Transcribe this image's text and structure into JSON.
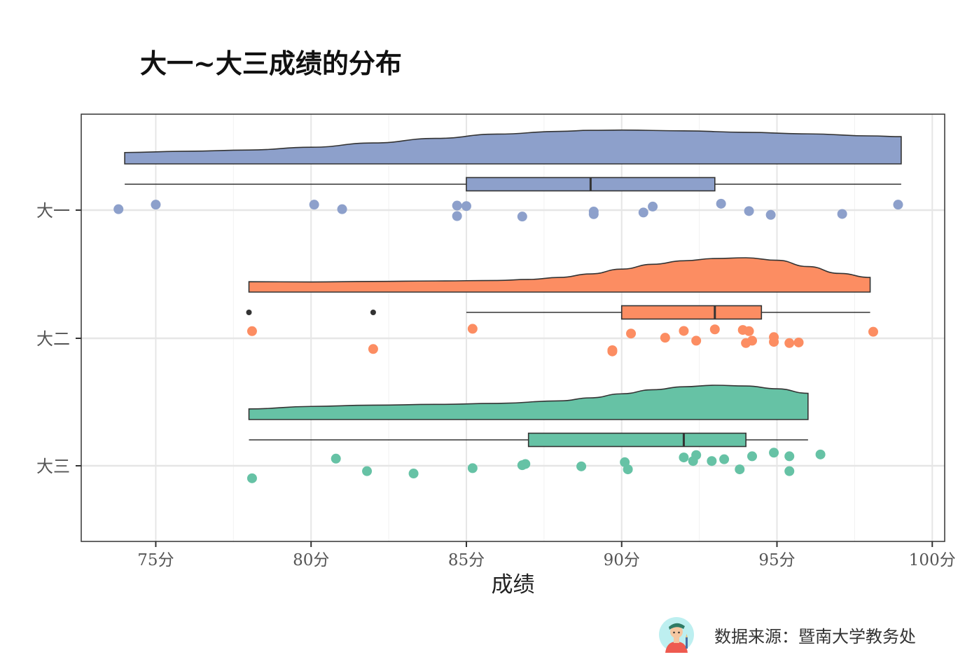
{
  "title": "大一~大三成绩的分布",
  "footer": {
    "source": "数据来源：暨南大学教务处",
    "icon": "avatar-icon"
  },
  "chart_data": {
    "type": "raincloud",
    "title": "大一~大三成绩的分布",
    "xlabel": "成绩",
    "ylabel": "",
    "xlim": [
      72.6,
      100.4
    ],
    "xticks": [
      75,
      80,
      85,
      90,
      95,
      100
    ],
    "xtick_labels": [
      "75分",
      "80分",
      "85分",
      "90分",
      "95分",
      "100分"
    ],
    "grid": true,
    "groups": [
      {
        "name": "大一",
        "color": "#8DA0CB",
        "density": {
          "x": [
            74,
            76,
            78,
            80,
            82,
            84,
            86,
            88,
            89,
            90,
            92,
            94,
            96,
            98,
            99
          ],
          "y": [
            0.09,
            0.14,
            0.19,
            0.3,
            0.47,
            0.65,
            0.82,
            0.93,
            0.97,
            0.98,
            0.95,
            0.89,
            0.83,
            0.75,
            0.72
          ]
        },
        "box": {
          "whisker_low": 74,
          "q1": 85,
          "median": 89,
          "q3": 93,
          "whisker_high": 99
        },
        "outliers": [],
        "points": [
          [
            73.8,
            0.08
          ],
          [
            75.0,
            0.46
          ],
          [
            80.1,
            0.46
          ],
          [
            81.0,
            0.08
          ],
          [
            84.7,
            0.38
          ],
          [
            85.0,
            0.34
          ],
          [
            84.7,
            -0.5
          ],
          [
            86.8,
            -0.54
          ],
          [
            89.1,
            -0.12
          ],
          [
            89.1,
            -0.34
          ],
          [
            90.7,
            -0.2
          ],
          [
            91.0,
            0.3
          ],
          [
            93.2,
            0.54
          ],
          [
            94.1,
            -0.08
          ],
          [
            94.8,
            -0.4
          ],
          [
            97.1,
            -0.32
          ],
          [
            98.9,
            0.46
          ]
        ]
      },
      {
        "name": "大二",
        "color": "#FC8D62",
        "density": {
          "x": [
            78,
            80,
            82,
            84,
            86,
            87,
            88,
            89,
            90,
            91,
            92,
            93,
            94,
            95,
            96,
            97,
            98
          ],
          "y": [
            0.05,
            0.04,
            0.06,
            0.08,
            0.1,
            0.14,
            0.22,
            0.36,
            0.55,
            0.74,
            0.88,
            0.97,
            1.0,
            0.9,
            0.65,
            0.38,
            0.22
          ]
        },
        "box": {
          "whisker_low": 85,
          "q1": 90,
          "median": 93,
          "q3": 94.5,
          "whisker_high": 98
        },
        "outliers": [
          78,
          82
        ],
        "points": [
          [
            78.1,
            0.6
          ],
          [
            82.0,
            -0.9
          ],
          [
            85.2,
            0.8
          ],
          [
            89.7,
            -1.1
          ],
          [
            89.7,
            -1.0
          ],
          [
            90.3,
            0.4
          ],
          [
            91.4,
            0.05
          ],
          [
            92.0,
            0.62
          ],
          [
            92.4,
            -0.2
          ],
          [
            93.0,
            0.75
          ],
          [
            93.9,
            0.7
          ],
          [
            94.1,
            0.6
          ],
          [
            94.0,
            -0.4
          ],
          [
            94.2,
            -0.2
          ],
          [
            94.9,
            0.1
          ],
          [
            94.9,
            -0.3
          ],
          [
            95.4,
            -0.4
          ],
          [
            95.7,
            -0.35
          ],
          [
            98.1,
            0.55
          ]
        ]
      },
      {
        "name": "大三",
        "color": "#66C2A5",
        "density": {
          "x": [
            78,
            80,
            82,
            84,
            86,
            88,
            89,
            90,
            91,
            92,
            93,
            94,
            95,
            96
          ],
          "y": [
            0.06,
            0.16,
            0.21,
            0.24,
            0.28,
            0.38,
            0.5,
            0.66,
            0.82,
            0.94,
            1.0,
            0.97,
            0.86,
            0.68
          ]
        },
        "box": {
          "whisker_low": 78,
          "q1": 87,
          "median": 92,
          "q3": 94,
          "whisker_high": 96
        },
        "outliers": [],
        "points": [
          [
            78.1,
            -1.05
          ],
          [
            80.8,
            0.6
          ],
          [
            81.8,
            -0.45
          ],
          [
            83.3,
            -0.65
          ],
          [
            85.2,
            -0.2
          ],
          [
            86.8,
            0.05
          ],
          [
            86.9,
            0.15
          ],
          [
            88.7,
            -0.05
          ],
          [
            90.1,
            0.3
          ],
          [
            90.2,
            -0.3
          ],
          [
            92.0,
            0.7
          ],
          [
            92.3,
            0.4
          ],
          [
            92.4,
            0.9
          ],
          [
            92.9,
            0.4
          ],
          [
            93.3,
            0.55
          ],
          [
            93.8,
            -0.3
          ],
          [
            94.2,
            0.8
          ],
          [
            94.9,
            1.1
          ],
          [
            95.4,
            0.8
          ],
          [
            95.4,
            -0.45
          ],
          [
            96.4,
            0.95
          ]
        ]
      }
    ]
  }
}
